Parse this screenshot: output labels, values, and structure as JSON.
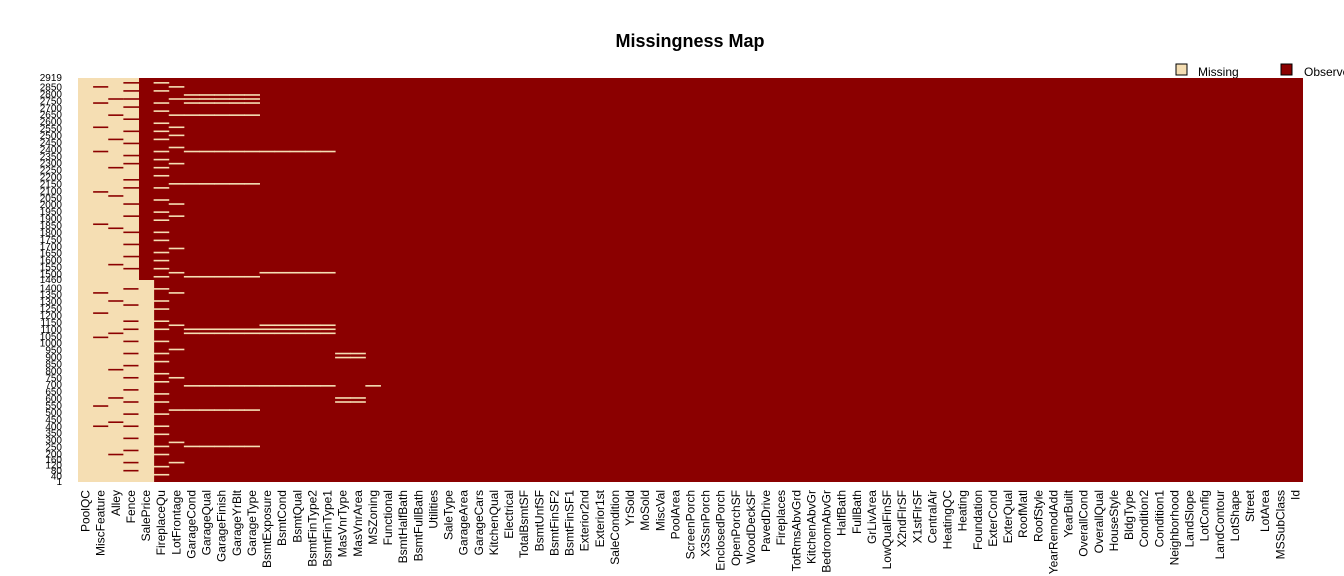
{
  "chart_data": {
    "type": "heatmap",
    "title": "Missingness Map",
    "legend": {
      "placement": "top-right",
      "entries": [
        {
          "label": "Missing",
          "color": "#f5deb3"
        },
        {
          "label": "Observed",
          "color": "#8b0000"
        }
      ]
    },
    "colors": {
      "missing": "#f5deb3",
      "observed": "#8b0000"
    },
    "n_rows": 2919,
    "columns": [
      "PoolQC",
      "MiscFeature",
      "Alley",
      "Fence",
      "SalePrice",
      "FireplaceQu",
      "LotFrontage",
      "GarageCond",
      "GarageQual",
      "GarageFinish",
      "GarageYrBlt",
      "GarageType",
      "BsmtExposure",
      "BsmtCond",
      "BsmtQual",
      "BsmtFinType2",
      "BsmtFinType1",
      "MasVnrType",
      "MasVnrArea",
      "MSZoning",
      "Functional",
      "BsmtHalfBath",
      "BsmtFullBath",
      "Utilities",
      "SaleType",
      "GarageArea",
      "GarageCars",
      "KitchenQual",
      "Electrical",
      "TotalBsmtSF",
      "BsmtUnfSF",
      "BsmtFinSF2",
      "BsmtFinSF1",
      "Exterior2nd",
      "Exterior1st",
      "SaleCondition",
      "YrSold",
      "MoSold",
      "MiscVal",
      "PoolArea",
      "ScreenPorch",
      "X3SsnPorch",
      "EnclosedPorch",
      "OpenPorchSF",
      "WoodDeckSF",
      "PavedDrive",
      "Fireplaces",
      "TotRmsAbvGrd",
      "KitchenAbvGr",
      "BedroomAbvGr",
      "HalfBath",
      "FullBath",
      "GrLivArea",
      "LowQualFinSF",
      "X2ndFlrSF",
      "X1stFlrSF",
      "CentralAir",
      "HeatingQC",
      "Heating",
      "Foundation",
      "ExterCond",
      "ExterQual",
      "RoofMatl",
      "RoofStyle",
      "YearRemodAdd",
      "YearBuilt",
      "OverallCond",
      "OverallQual",
      "HouseStyle",
      "BldgType",
      "Condition2",
      "Condition1",
      "Neighborhood",
      "LandSlope",
      "LotConfig",
      "LandContour",
      "LotShape",
      "Street",
      "LotArea",
      "MSSubClass",
      "Id"
    ],
    "missing_fraction": [
      0.997,
      0.964,
      0.932,
      0.804,
      0.5,
      0.486,
      0.166,
      0.054,
      0.054,
      0.054,
      0.054,
      0.054,
      0.028,
      0.028,
      0.028,
      0.028,
      0.027,
      0.008,
      0.008,
      0.001,
      0.001,
      0.001,
      0.001,
      0.001,
      0.0,
      0.0,
      0.0,
      0.0,
      0.0,
      0.0,
      0.0,
      0.0,
      0.0,
      0.0,
      0.0,
      0.0,
      0,
      0,
      0,
      0,
      0,
      0,
      0,
      0,
      0,
      0,
      0,
      0,
      0,
      0,
      0,
      0,
      0,
      0,
      0,
      0,
      0,
      0,
      0,
      0,
      0,
      0,
      0,
      0,
      0,
      0,
      0,
      0,
      0,
      0,
      0,
      0,
      0,
      0,
      0,
      0,
      0,
      0,
      0,
      0,
      0
    ],
    "salePrice_missing_rows": [
      1460,
      2919
    ],
    "observed_in_missing_cols": {
      "PoolQC": [],
      "MiscFeature": [
        0.02,
        0.06,
        0.12,
        0.18,
        0.28,
        0.36,
        0.53,
        0.58,
        0.64,
        0.81,
        0.86
      ],
      "Alley": [
        0.05,
        0.09,
        0.15,
        0.22,
        0.29,
        0.37,
        0.46,
        0.55,
        0.63,
        0.72,
        0.79,
        0.85,
        0.93
      ],
      "Fence": [
        0.01,
        0.03,
        0.05,
        0.07,
        0.1,
        0.13,
        0.16,
        0.19,
        0.21,
        0.25,
        0.27,
        0.31,
        0.34,
        0.38,
        0.41,
        0.44,
        0.47,
        0.52,
        0.56,
        0.6,
        0.62,
        0.65,
        0.68,
        0.71,
        0.74,
        0.77,
        0.8,
        0.83,
        0.86,
        0.89,
        0.92,
        0.95,
        0.97
      ]
    },
    "missing_in_observed_cols": {
      "FireplaceQu": [
        0.01,
        0.03,
        0.06,
        0.08,
        0.11,
        0.13,
        0.15,
        0.18,
        0.2,
        0.22,
        0.24,
        0.27,
        0.3,
        0.33,
        0.35,
        0.38,
        0.4,
        0.43,
        0.45,
        0.47,
        0.49,
        0.52,
        0.55,
        0.57,
        0.6,
        0.62,
        0.65,
        0.68,
        0.7,
        0.73,
        0.75,
        0.78,
        0.8,
        0.83,
        0.86,
        0.88,
        0.91,
        0.93,
        0.96,
        0.98
      ],
      "LotFrontage": [
        0.02,
        0.05,
        0.09,
        0.12,
        0.14,
        0.17,
        0.21,
        0.26,
        0.31,
        0.34,
        0.42,
        0.48,
        0.53,
        0.61,
        0.67,
        0.74,
        0.82,
        0.9,
        0.95
      ],
      "Garage": [
        0.04,
        0.05,
        0.06,
        0.09,
        0.18,
        0.26,
        0.49,
        0.62,
        0.63,
        0.76,
        0.82,
        0.91
      ],
      "Bsmt": [
        0.18,
        0.48,
        0.61,
        0.62,
        0.63,
        0.76
      ],
      "MasVnr": [
        0.68,
        0.69,
        0.79,
        0.8
      ],
      "MSZoning": [
        0.76
      ]
    }
  }
}
